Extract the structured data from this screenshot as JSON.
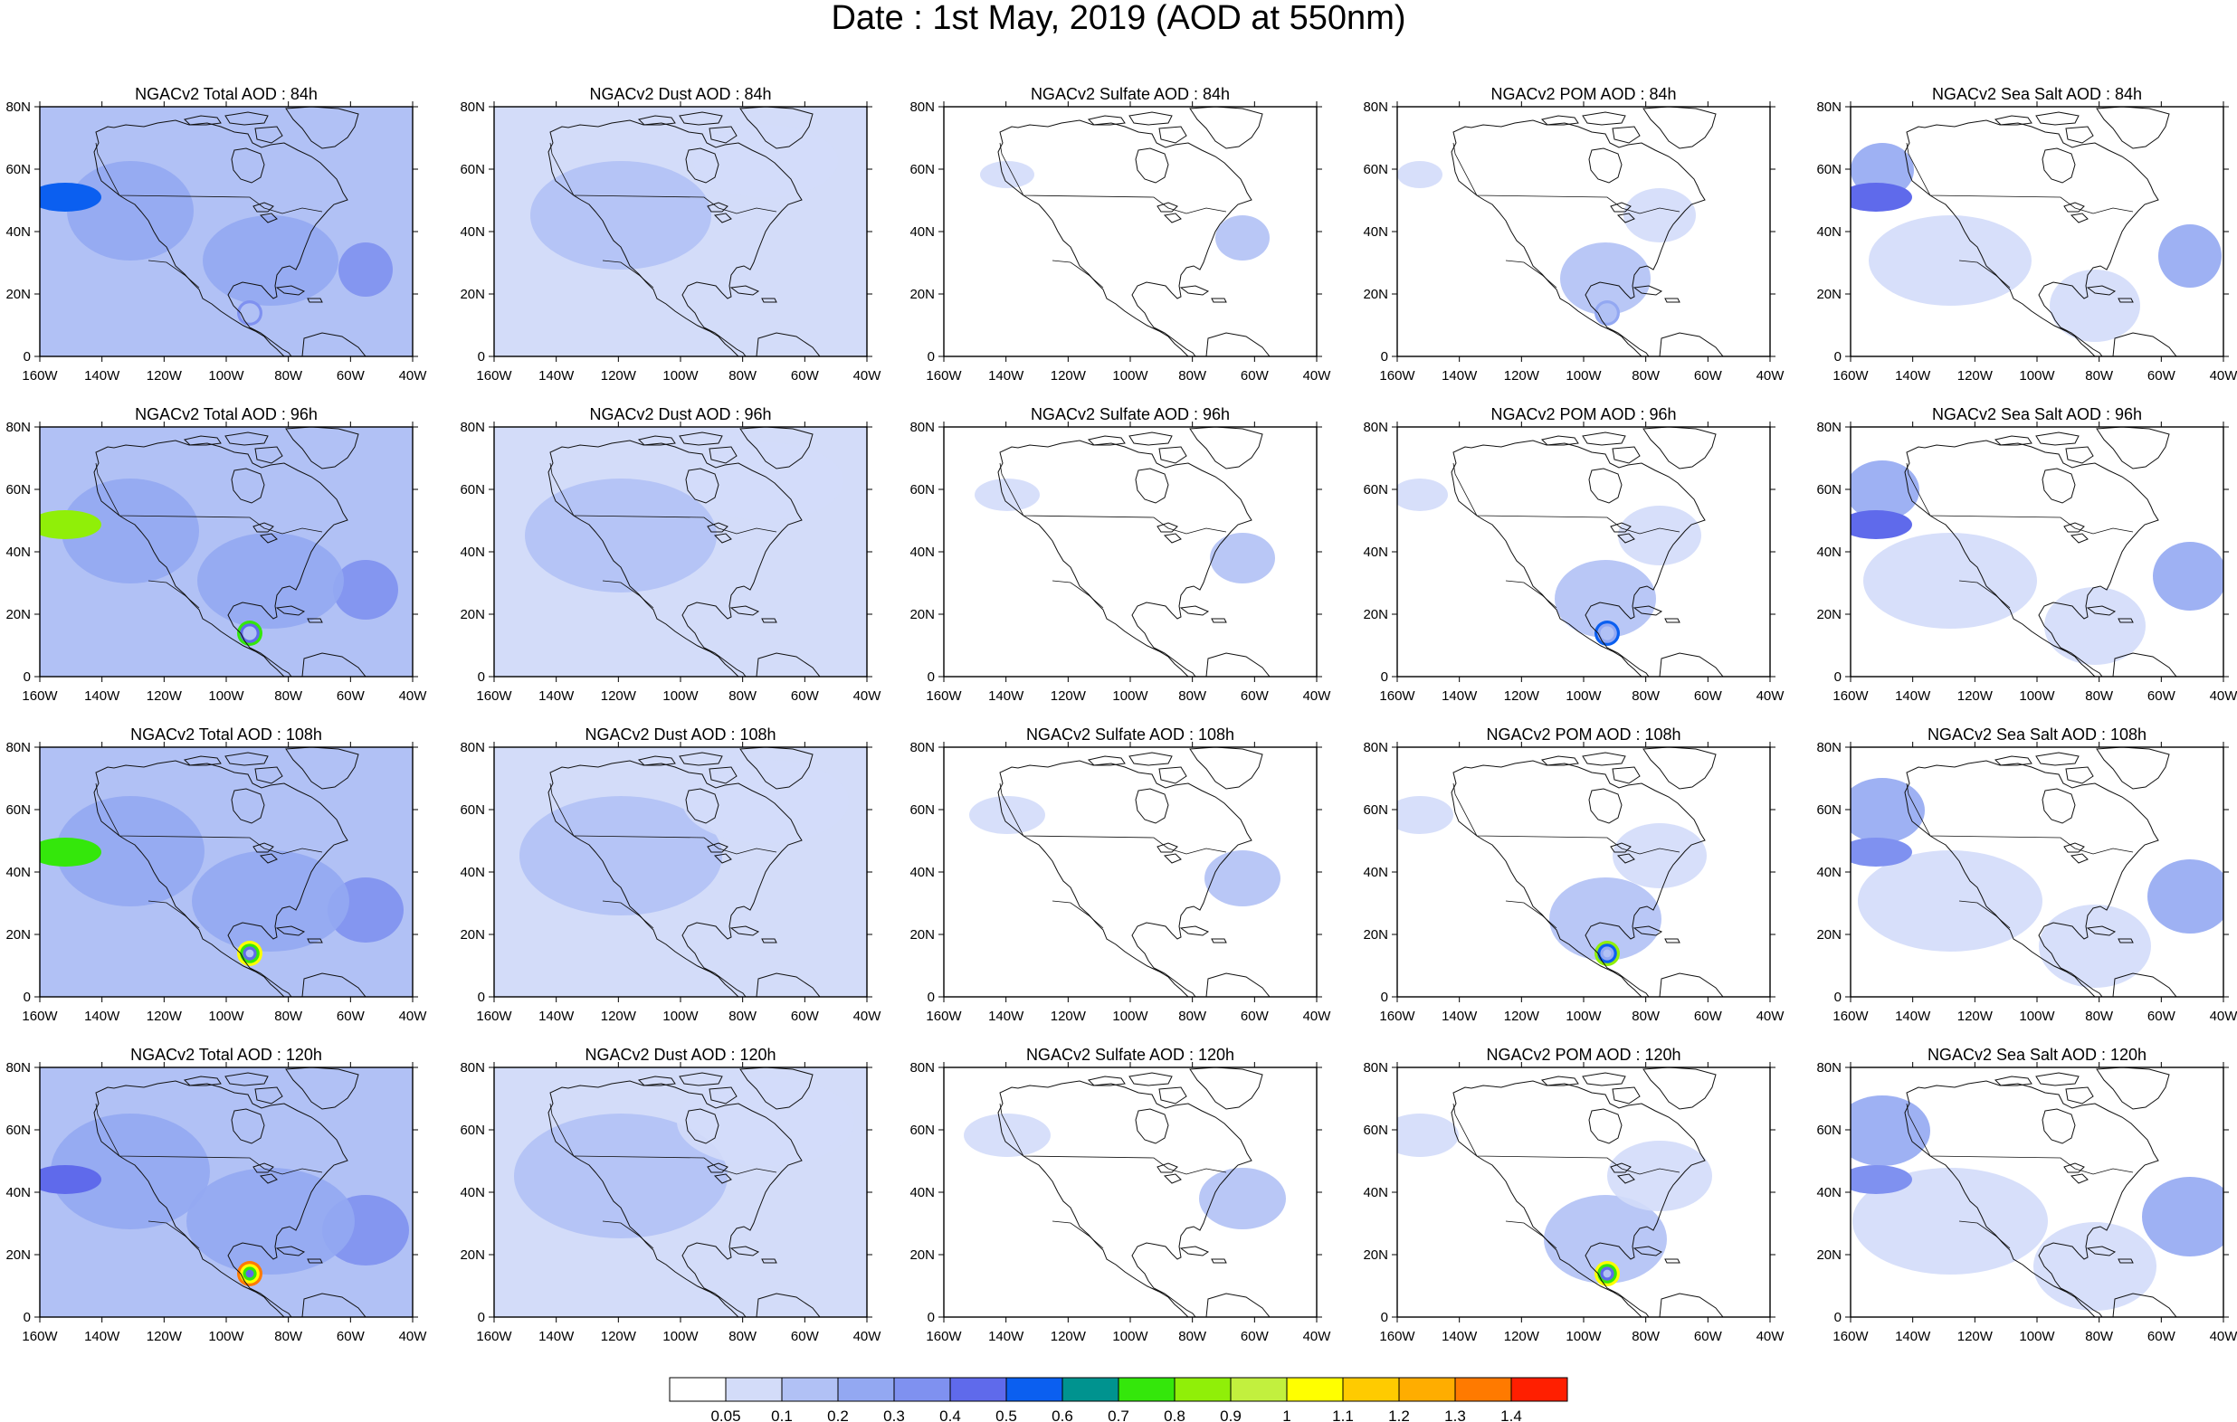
{
  "figure": {
    "title": "Date : 1st May, 2019 (AOD at 550nm)"
  },
  "panel_titles": [
    [
      "NGACv2 Total AOD : 84h",
      "NGACv2 Dust AOD : 84h",
      "NGACv2 Sulfate AOD : 84h",
      "NGACv2 POM AOD : 84h",
      "NGACv2 Sea Salt AOD : 84h"
    ],
    [
      "NGACv2 Total AOD : 96h",
      "NGACv2 Dust AOD : 96h",
      "NGACv2 Sulfate AOD : 96h",
      "NGACv2 POM AOD : 96h",
      "NGACv2 Sea Salt AOD : 96h"
    ],
    [
      "NGACv2 Total AOD : 108h",
      "NGACv2 Dust AOD : 108h",
      "NGACv2 Sulfate AOD : 108h",
      "NGACv2 POM AOD : 108h",
      "NGACv2 Sea Salt AOD : 108h"
    ],
    [
      "NGACv2 Total AOD : 120h",
      "NGACv2 Dust AOD : 120h",
      "NGACv2 Sulfate AOD : 120h",
      "NGACv2 POM AOD : 120h",
      "NGACv2 Sea Salt  AOD : 120h"
    ]
  ],
  "map": {
    "lon_range": [
      -160,
      -40
    ],
    "lat_range": [
      0,
      80
    ],
    "lon_ticks": [
      "160W",
      "140W",
      "120W",
      "100W",
      "80W",
      "60W",
      "40W"
    ],
    "lat_ticks": [
      "0",
      "20N",
      "40N",
      "60N",
      "80N"
    ]
  },
  "colorbar": {
    "colors": [
      "#ffffff",
      "#d3dcf9",
      "#b1c1f5",
      "#93a8f2",
      "#7f91f0",
      "#5f6aeb",
      "#0b5ff0",
      "#00938f",
      "#34e70b",
      "#90ef08",
      "#c2f03e",
      "#ffff00",
      "#ffcb00",
      "#ffad00",
      "#ff7a00",
      "#ff1f00"
    ],
    "labels": [
      "0.05",
      "0.1",
      "0.2",
      "0.3",
      "0.4",
      "0.5",
      "0.6",
      "0.7",
      "0.8",
      "0.9",
      "1",
      "1.1",
      "1.2",
      "1.3",
      "1.4"
    ]
  }
}
